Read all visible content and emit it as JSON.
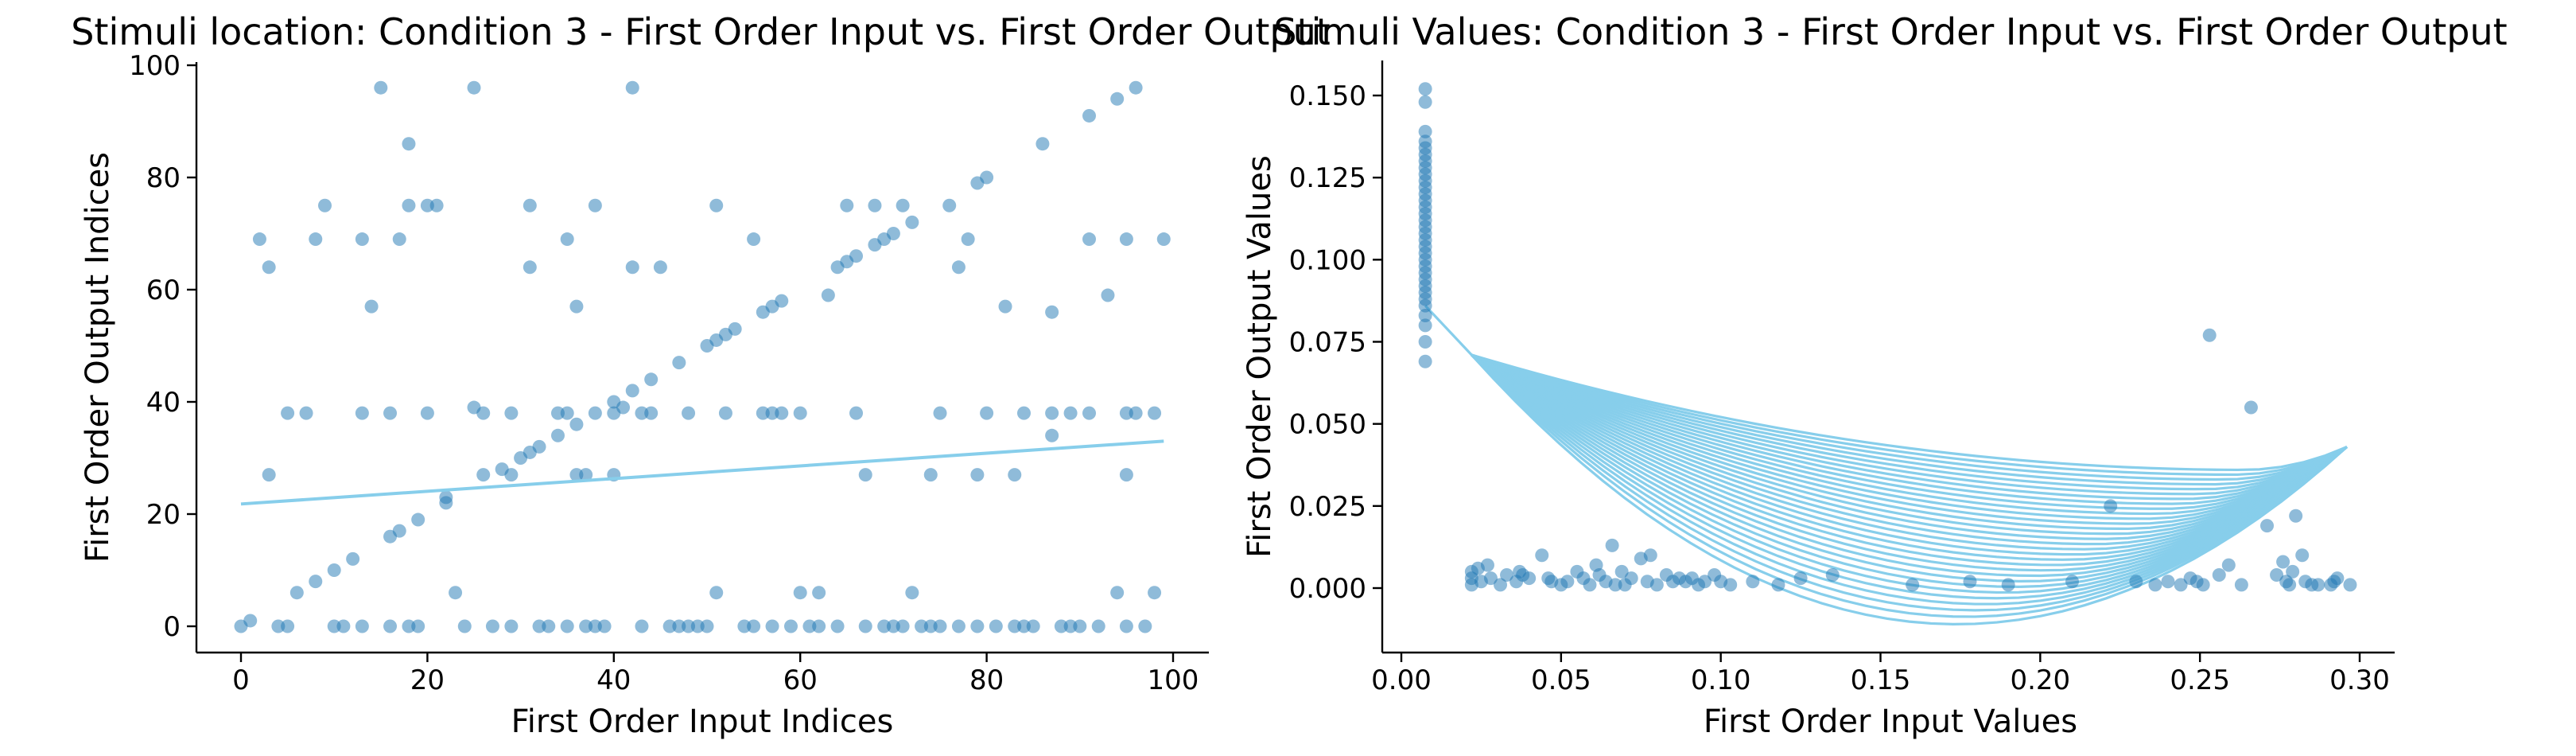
{
  "chart_data": [
    {
      "type": "scatter",
      "title": "Stimuli location: Condition 3 - First Order Input vs. First Order Output",
      "xlabel": "First Order Input Indices",
      "ylabel": "First Order Output Indices",
      "xlim": [
        -5,
        104
      ],
      "ylim": [
        -5,
        101
      ],
      "xticks": [
        0,
        20,
        40,
        60,
        80,
        100
      ],
      "yticks": [
        0,
        20,
        40,
        60,
        80,
        100
      ],
      "grid": false,
      "colors": {
        "points": "#1f77b4",
        "line": "#87ceeb"
      },
      "trend_line": {
        "x": [
          0,
          99
        ],
        "y": [
          21.8,
          33
        ]
      },
      "points": [
        [
          0,
          0
        ],
        [
          1,
          1
        ],
        [
          2,
          69
        ],
        [
          3,
          64
        ],
        [
          3,
          27
        ],
        [
          4,
          0
        ],
        [
          5,
          0
        ],
        [
          5,
          38
        ],
        [
          6,
          6
        ],
        [
          7,
          38
        ],
        [
          8,
          69
        ],
        [
          8,
          8
        ],
        [
          9,
          75
        ],
        [
          10,
          10
        ],
        [
          10,
          0
        ],
        [
          11,
          0
        ],
        [
          12,
          12
        ],
        [
          13,
          69
        ],
        [
          13,
          0
        ],
        [
          13,
          38
        ],
        [
          14,
          57
        ],
        [
          15,
          96
        ],
        [
          16,
          16
        ],
        [
          16,
          38
        ],
        [
          16,
          0
        ],
        [
          17,
          17
        ],
        [
          17,
          69
        ],
        [
          18,
          86
        ],
        [
          18,
          75
        ],
        [
          18,
          0
        ],
        [
          19,
          19
        ],
        [
          19,
          0
        ],
        [
          20,
          38
        ],
        [
          20,
          75
        ],
        [
          21,
          75
        ],
        [
          22,
          22
        ],
        [
          22,
          23
        ],
        [
          23,
          6
        ],
        [
          24,
          0
        ],
        [
          25,
          96
        ],
        [
          25,
          39
        ],
        [
          26,
          27
        ],
        [
          26,
          38
        ],
        [
          27,
          0
        ],
        [
          28,
          28
        ],
        [
          29,
          27
        ],
        [
          29,
          38
        ],
        [
          29,
          0
        ],
        [
          30,
          30
        ],
        [
          31,
          31
        ],
        [
          31,
          75
        ],
        [
          31,
          64
        ],
        [
          32,
          32
        ],
        [
          32,
          0
        ],
        [
          33,
          0
        ],
        [
          34,
          34
        ],
        [
          34,
          38
        ],
        [
          35,
          69
        ],
        [
          35,
          38
        ],
        [
          35,
          0
        ],
        [
          36,
          36
        ],
        [
          36,
          57
        ],
        [
          36,
          27
        ],
        [
          37,
          27
        ],
        [
          37,
          0
        ],
        [
          38,
          38
        ],
        [
          38,
          75
        ],
        [
          38,
          0
        ],
        [
          39,
          0
        ],
        [
          40,
          40
        ],
        [
          40,
          27
        ],
        [
          40,
          38
        ],
        [
          41,
          39
        ],
        [
          42,
          42
        ],
        [
          42,
          96
        ],
        [
          42,
          64
        ],
        [
          43,
          38
        ],
        [
          43,
          0
        ],
        [
          44,
          44
        ],
        [
          44,
          38
        ],
        [
          45,
          64
        ],
        [
          46,
          0
        ],
        [
          47,
          47
        ],
        [
          47,
          0
        ],
        [
          48,
          38
        ],
        [
          48,
          0
        ],
        [
          49,
          0
        ],
        [
          50,
          50
        ],
        [
          50,
          0
        ],
        [
          51,
          75
        ],
        [
          51,
          6
        ],
        [
          51,
          51
        ],
        [
          52,
          52
        ],
        [
          52,
          38
        ],
        [
          53,
          53
        ],
        [
          54,
          0
        ],
        [
          55,
          69
        ],
        [
          55,
          0
        ],
        [
          56,
          56
        ],
        [
          56,
          38
        ],
        [
          57,
          57
        ],
        [
          57,
          38
        ],
        [
          57,
          0
        ],
        [
          58,
          58
        ],
        [
          58,
          38
        ],
        [
          59,
          0
        ],
        [
          60,
          6
        ],
        [
          60,
          38
        ],
        [
          61,
          0
        ],
        [
          62,
          6
        ],
        [
          62,
          0
        ],
        [
          63,
          59
        ],
        [
          64,
          64
        ],
        [
          64,
          0
        ],
        [
          65,
          65
        ],
        [
          65,
          75
        ],
        [
          66,
          66
        ],
        [
          66,
          38
        ],
        [
          67,
          27
        ],
        [
          67,
          0
        ],
        [
          68,
          68
        ],
        [
          68,
          75
        ],
        [
          69,
          69
        ],
        [
          69,
          0
        ],
        [
          70,
          70
        ],
        [
          70,
          0
        ],
        [
          71,
          75
        ],
        [
          71,
          0
        ],
        [
          72,
          72
        ],
        [
          72,
          6
        ],
        [
          73,
          0
        ],
        [
          74,
          27
        ],
        [
          74,
          0
        ],
        [
          75,
          38
        ],
        [
          75,
          0
        ],
        [
          76,
          75
        ],
        [
          77,
          64
        ],
        [
          77,
          0
        ],
        [
          78,
          69
        ],
        [
          79,
          79
        ],
        [
          79,
          27
        ],
        [
          79,
          0
        ],
        [
          80,
          80
        ],
        [
          80,
          38
        ],
        [
          81,
          0
        ],
        [
          82,
          57
        ],
        [
          83,
          27
        ],
        [
          83,
          0
        ],
        [
          84,
          38
        ],
        [
          84,
          0
        ],
        [
          85,
          0
        ],
        [
          86,
          86
        ],
        [
          87,
          56
        ],
        [
          87,
          34
        ],
        [
          87,
          38
        ],
        [
          88,
          0
        ],
        [
          89,
          38
        ],
        [
          89,
          0
        ],
        [
          90,
          0
        ],
        [
          91,
          91
        ],
        [
          91,
          69
        ],
        [
          91,
          38
        ],
        [
          92,
          0
        ],
        [
          93,
          59
        ],
        [
          94,
          94
        ],
        [
          94,
          6
        ],
        [
          95,
          69
        ],
        [
          95,
          38
        ],
        [
          95,
          27
        ],
        [
          95,
          0
        ],
        [
          96,
          96
        ],
        [
          96,
          38
        ],
        [
          97,
          0
        ],
        [
          98,
          6
        ],
        [
          98,
          38
        ],
        [
          99,
          69
        ]
      ]
    },
    {
      "type": "scatter",
      "title": "Stimuli Values: Condition 3 - First Order Input vs. First Order Output",
      "xlabel": "First Order Input Values",
      "ylabel": "First Order Output Values",
      "xlim": [
        -0.008,
        0.31
      ],
      "ylim": [
        -0.008,
        0.163
      ],
      "xticks": [
        0.0,
        0.05,
        0.1,
        0.15,
        0.2,
        0.25,
        0.3
      ],
      "xtick_labels": [
        "0.00",
        "0.05",
        "0.10",
        "0.15",
        "0.20",
        "0.25",
        "0.30"
      ],
      "yticks": [
        0.0,
        0.025,
        0.05,
        0.075,
        0.1,
        0.125,
        0.15
      ],
      "ytick_labels": [
        "0.000",
        "0.025",
        "0.050",
        "0.075",
        "0.100",
        "0.125",
        "0.150"
      ],
      "grid": false,
      "colors": {
        "points": "#1f77b4",
        "line": "#87ceeb"
      },
      "column_points": {
        "x": 0.0075,
        "y": [
          0.069,
          0.075,
          0.08,
          0.083,
          0.086,
          0.088,
          0.09,
          0.092,
          0.094,
          0.096,
          0.098,
          0.1,
          0.102,
          0.104,
          0.106,
          0.108,
          0.11,
          0.112,
          0.114,
          0.116,
          0.118,
          0.12,
          0.122,
          0.124,
          0.126,
          0.128,
          0.13,
          0.132,
          0.134,
          0.136,
          0.139,
          0.148,
          0.152
        ]
      },
      "fit_curves": {
        "x_start": 0.022,
        "y_start": 0.071,
        "x_end": 0.296,
        "y_end": 0.043,
        "min_range": [
          -0.011,
          0.036
        ],
        "count": 30
      },
      "points": [
        [
          0.022,
          0.005
        ],
        [
          0.022,
          0.003
        ],
        [
          0.022,
          0.001
        ],
        [
          0.024,
          0.006
        ],
        [
          0.025,
          0.002
        ],
        [
          0.027,
          0.007
        ],
        [
          0.028,
          0.003
        ],
        [
          0.031,
          0.001
        ],
        [
          0.033,
          0.004
        ],
        [
          0.036,
          0.002
        ],
        [
          0.037,
          0.005
        ],
        [
          0.038,
          0.004
        ],
        [
          0.04,
          0.003
        ],
        [
          0.044,
          0.01
        ],
        [
          0.046,
          0.003
        ],
        [
          0.047,
          0.002
        ],
        [
          0.05,
          0.001
        ],
        [
          0.052,
          0.002
        ],
        [
          0.055,
          0.005
        ],
        [
          0.057,
          0.003
        ],
        [
          0.059,
          0.001
        ],
        [
          0.061,
          0.007
        ],
        [
          0.062,
          0.004
        ],
        [
          0.064,
          0.002
        ],
        [
          0.066,
          0.013
        ],
        [
          0.067,
          0.001
        ],
        [
          0.069,
          0.005
        ],
        [
          0.07,
          0.001
        ],
        [
          0.072,
          0.003
        ],
        [
          0.075,
          0.009
        ],
        [
          0.077,
          0.002
        ],
        [
          0.078,
          0.01
        ],
        [
          0.08,
          0.001
        ],
        [
          0.083,
          0.004
        ],
        [
          0.085,
          0.002
        ],
        [
          0.087,
          0.003
        ],
        [
          0.089,
          0.002
        ],
        [
          0.091,
          0.003
        ],
        [
          0.093,
          0.001
        ],
        [
          0.095,
          0.002
        ],
        [
          0.098,
          0.004
        ],
        [
          0.1,
          0.002
        ],
        [
          0.103,
          0.001
        ],
        [
          0.11,
          0.002
        ],
        [
          0.118,
          0.001
        ],
        [
          0.125,
          0.003
        ],
        [
          0.135,
          0.004
        ],
        [
          0.16,
          0.001
        ],
        [
          0.178,
          0.002
        ],
        [
          0.19,
          0.001
        ],
        [
          0.21,
          0.002
        ],
        [
          0.222,
          0.025
        ],
        [
          0.23,
          0.002
        ],
        [
          0.236,
          0.001
        ],
        [
          0.24,
          0.002
        ],
        [
          0.244,
          0.001
        ],
        [
          0.247,
          0.003
        ],
        [
          0.249,
          0.002
        ],
        [
          0.251,
          0.001
        ],
        [
          0.253,
          0.077
        ],
        [
          0.256,
          0.004
        ],
        [
          0.259,
          0.007
        ],
        [
          0.263,
          0.001
        ],
        [
          0.266,
          0.055
        ],
        [
          0.271,
          0.019
        ],
        [
          0.274,
          0.004
        ],
        [
          0.276,
          0.008
        ],
        [
          0.277,
          0.002
        ],
        [
          0.278,
          0.001
        ],
        [
          0.279,
          0.005
        ],
        [
          0.28,
          0.022
        ],
        [
          0.282,
          0.01
        ],
        [
          0.283,
          0.002
        ],
        [
          0.285,
          0.001
        ],
        [
          0.287,
          0.001
        ],
        [
          0.291,
          0.001
        ],
        [
          0.292,
          0.002
        ],
        [
          0.293,
          0.003
        ],
        [
          0.297,
          0.001
        ]
      ]
    }
  ]
}
